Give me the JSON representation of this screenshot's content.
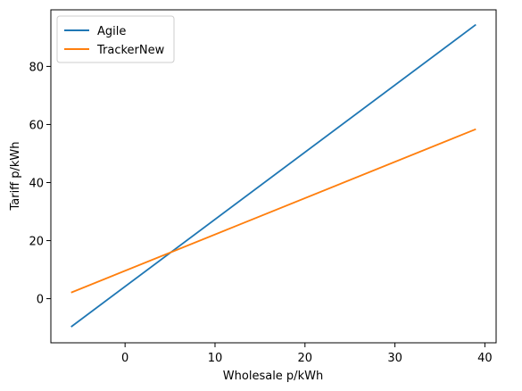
{
  "chart_data": {
    "type": "line",
    "title": "",
    "xlabel": "Wholesale p/kWh",
    "ylabel": "Tariff p/kWh",
    "xlim": [
      -8.25,
      41.25
    ],
    "ylim": [
      -15.2,
      99.5
    ],
    "xticks": [
      0,
      10,
      20,
      30,
      40
    ],
    "yticks": [
      0,
      20,
      40,
      60,
      80
    ],
    "grid": false,
    "legend_position": "top-left",
    "series": [
      {
        "name": "Agile",
        "color": "#1f77b4",
        "x": [
          -6,
          39
        ],
        "y": [
          -9.7,
          94.4
        ]
      },
      {
        "name": "TrackerNew",
        "color": "#ff7f0e",
        "x": [
          -6,
          39
        ],
        "y": [
          2.1,
          58.4
        ]
      }
    ]
  }
}
